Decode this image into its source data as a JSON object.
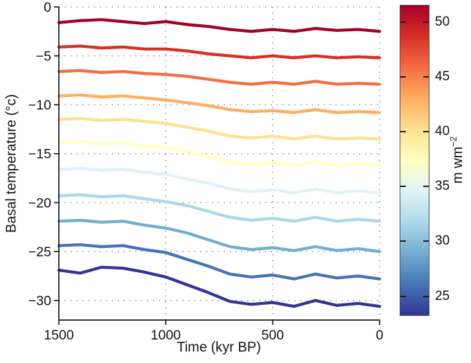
{
  "figure": {
    "background": "#ffffff",
    "axis_color": "#1a1a1a",
    "grid_color": "#858585",
    "text_color": "#111111"
  },
  "chart_data": {
    "type": "line",
    "title": "",
    "xlabel": "Time (kyr BP)",
    "ylabel": "Basal temperature (°c)",
    "xlim": [
      1500,
      0
    ],
    "ylim": [
      -32,
      0
    ],
    "x_ticks": [
      1500,
      1000,
      500,
      0
    ],
    "y_ticks": [
      0,
      -5,
      -10,
      -15,
      -20,
      -25,
      -30
    ],
    "grid": "dotted",
    "legend": "none (colorbar encodes series)",
    "x": [
      1500,
      1400,
      1300,
      1200,
      1100,
      1000,
      900,
      800,
      700,
      600,
      500,
      400,
      300,
      200,
      100,
      0
    ],
    "series": [
      {
        "name": "line-01-dark-red",
        "color": "#a50026",
        "values": [
          -1.6,
          -1.4,
          -1.3,
          -1.5,
          -1.7,
          -1.5,
          -1.8,
          -2.0,
          -2.3,
          -2.5,
          -2.3,
          -2.5,
          -2.2,
          -2.4,
          -2.3,
          -2.5
        ]
      },
      {
        "name": "line-02-red",
        "color": "#d73027",
        "values": [
          -4.1,
          -4.0,
          -4.2,
          -4.1,
          -4.3,
          -4.3,
          -4.5,
          -4.8,
          -5.0,
          -5.2,
          -5.0,
          -5.2,
          -5.0,
          -5.2,
          -5.1,
          -5.2
        ]
      },
      {
        "name": "line-03-orange-red",
        "color": "#f46d43",
        "values": [
          -6.6,
          -6.5,
          -6.7,
          -6.6,
          -6.8,
          -6.9,
          -7.1,
          -7.4,
          -7.7,
          -7.9,
          -7.7,
          -7.9,
          -7.6,
          -7.9,
          -7.8,
          -7.9
        ]
      },
      {
        "name": "line-04-orange",
        "color": "#fdae61",
        "values": [
          -9.1,
          -9.0,
          -9.2,
          -9.1,
          -9.3,
          -9.5,
          -9.8,
          -10.1,
          -10.5,
          -10.7,
          -10.6,
          -10.8,
          -10.5,
          -10.8,
          -10.7,
          -10.8
        ]
      },
      {
        "name": "line-05-peach",
        "color": "#fee090",
        "values": [
          -11.5,
          -11.4,
          -11.6,
          -11.5,
          -11.7,
          -11.9,
          -12.3,
          -12.7,
          -13.2,
          -13.4,
          -13.2,
          -13.5,
          -13.2,
          -13.5,
          -13.4,
          -13.5
        ]
      },
      {
        "name": "line-06-pale-yellow",
        "color": "#ffffbf",
        "values": [
          -13.9,
          -13.8,
          -14.0,
          -13.9,
          -14.2,
          -14.4,
          -14.8,
          -15.3,
          -15.9,
          -16.1,
          -15.9,
          -16.2,
          -15.9,
          -16.2,
          -16.0,
          -16.2
        ]
      },
      {
        "name": "line-07-pale-blue",
        "color": "#e0f3f8",
        "values": [
          -16.6,
          -16.5,
          -16.7,
          -16.6,
          -16.9,
          -17.1,
          -17.6,
          -18.0,
          -18.6,
          -18.9,
          -18.7,
          -19.0,
          -18.6,
          -19.0,
          -18.8,
          -19.0
        ]
      },
      {
        "name": "line-08-light-blue",
        "color": "#abd9e9",
        "values": [
          -19.3,
          -19.2,
          -19.4,
          -19.3,
          -19.6,
          -19.9,
          -20.3,
          -20.9,
          -21.5,
          -21.8,
          -21.6,
          -21.9,
          -21.5,
          -21.9,
          -21.7,
          -21.9
        ]
      },
      {
        "name": "line-09-medium-blue",
        "color": "#74add1",
        "values": [
          -21.9,
          -21.8,
          -22.0,
          -21.9,
          -22.3,
          -22.6,
          -23.1,
          -23.8,
          -24.5,
          -24.8,
          -24.6,
          -24.9,
          -24.5,
          -24.9,
          -24.7,
          -25.0
        ]
      },
      {
        "name": "line-10-blue",
        "color": "#4575b4",
        "values": [
          -24.4,
          -24.3,
          -24.5,
          -24.4,
          -24.8,
          -25.1,
          -25.8,
          -26.5,
          -27.3,
          -27.6,
          -27.4,
          -27.8,
          -27.3,
          -27.7,
          -27.5,
          -27.8
        ]
      },
      {
        "name": "line-11-dark-blue",
        "color": "#313695",
        "values": [
          -26.9,
          -27.2,
          -26.6,
          -26.7,
          -27.1,
          -27.6,
          -28.4,
          -29.2,
          -30.1,
          -30.4,
          -30.2,
          -30.6,
          -30.0,
          -30.5,
          -30.3,
          -30.6
        ]
      }
    ],
    "colorbar": {
      "label_text": "m wm",
      "label_superscript": "−2",
      "min": 23.2,
      "max": 51.6,
      "ticks": [
        25,
        30,
        35,
        40,
        45,
        50
      ],
      "colors_bottom_to_top": [
        "#313695",
        "#4575b4",
        "#74add1",
        "#abd9e9",
        "#e0f3f8",
        "#ffffbf",
        "#fee090",
        "#fdae61",
        "#f46d43",
        "#d73027",
        "#a50026"
      ]
    }
  }
}
